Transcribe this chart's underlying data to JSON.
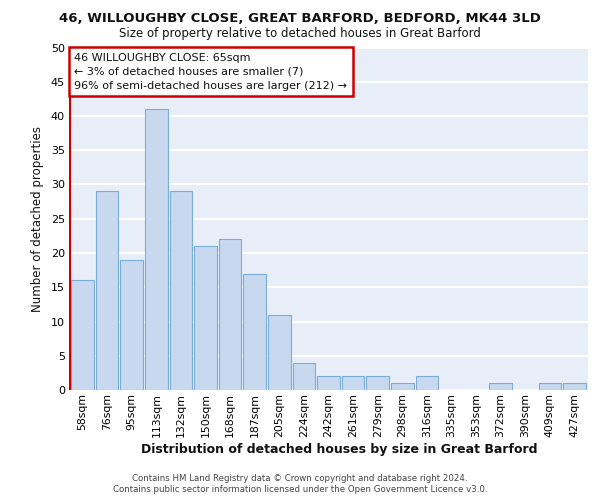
{
  "title1": "46, WILLOUGHBY CLOSE, GREAT BARFORD, BEDFORD, MK44 3LD",
  "title2": "Size of property relative to detached houses in Great Barford",
  "xlabel": "Distribution of detached houses by size in Great Barford",
  "ylabel": "Number of detached properties",
  "categories": [
    "58sqm",
    "76sqm",
    "95sqm",
    "113sqm",
    "132sqm",
    "150sqm",
    "168sqm",
    "187sqm",
    "205sqm",
    "224sqm",
    "242sqm",
    "261sqm",
    "279sqm",
    "298sqm",
    "316sqm",
    "335sqm",
    "353sqm",
    "372sqm",
    "390sqm",
    "409sqm",
    "427sqm"
  ],
  "values": [
    16,
    29,
    19,
    41,
    29,
    21,
    22,
    17,
    11,
    4,
    2,
    2,
    2,
    1,
    2,
    0,
    0,
    1,
    0,
    1,
    1
  ],
  "bar_color": "#c8d8ee",
  "bar_edge_color": "#7aaed4",
  "vline_color": "#cc0000",
  "annotation_text": "46 WILLOUGHBY CLOSE: 65sqm\n← 3% of detached houses are smaller (7)\n96% of semi-detached houses are larger (212) →",
  "annotation_box_color": "#cc0000",
  "ylim": [
    0,
    50
  ],
  "yticks": [
    0,
    5,
    10,
    15,
    20,
    25,
    30,
    35,
    40,
    45,
    50
  ],
  "bg_color": "#e8eef8",
  "grid_color": "#ffffff",
  "footer1": "Contains HM Land Registry data © Crown copyright and database right 2024.",
  "footer2": "Contains public sector information licensed under the Open Government Licence v3.0."
}
